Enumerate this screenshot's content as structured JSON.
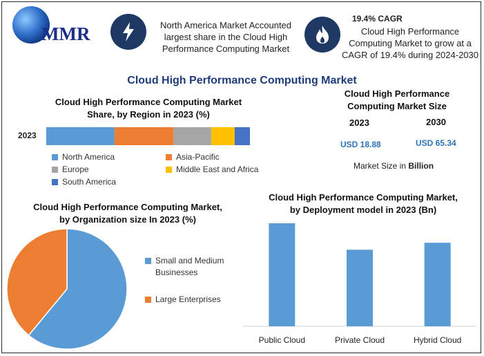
{
  "logo": {
    "text": "MMR"
  },
  "header": {
    "fact1": "North America Market Accounted largest share in the Cloud High Performance Computing Market",
    "fact2_title": "19.4% CAGR",
    "fact2": "Cloud High Performance Computing Market to grow at a CAGR of 19.4% during 2024-2030"
  },
  "main_title": "Cloud High Performance Computing Market",
  "market_size": {
    "title": "Cloud High Performance Computing Market Size",
    "year_1": "2023",
    "year_2": "2030",
    "value_1": "USD 18.88",
    "value_2": "USD 65.34",
    "note_prefix": "Market Size in ",
    "note_bold": "Billion"
  },
  "colors": {
    "blue": "#5b9bd5",
    "orange": "#ed7d31",
    "gray": "#a5a5a5",
    "yellow": "#ffc000",
    "navy": "#4472c4",
    "icon_bg": "#1e3a64",
    "title_blue": "#1f3c7a"
  },
  "chart_data": [
    {
      "type": "bar",
      "orientation": "horizontal-stacked",
      "title": "Cloud High Performance Computing Market Share, by Region in 2023 (%)",
      "categories": [
        "2023"
      ],
      "series": [
        {
          "name": "North America",
          "values": [
            33.5
          ],
          "color": "#5b9bd5"
        },
        {
          "name": "Asia-Pacific",
          "values": [
            29.0
          ],
          "color": "#ed7d31"
        },
        {
          "name": "Europe",
          "values": [
            18.5
          ],
          "color": "#a5a5a5"
        },
        {
          "name": "Middle East and Africa",
          "values": [
            11.5
          ],
          "color": "#ffc000"
        },
        {
          "name": "South America",
          "values": [
            7.5
          ],
          "color": "#4472c4"
        }
      ],
      "legend": "bottom"
    },
    {
      "type": "pie",
      "title": "Cloud High Performance Computing Market, by Organization size In 2023 (%)",
      "slices": [
        {
          "name": "Small and Medium Businesses",
          "value": 61,
          "color": "#5b9bd5"
        },
        {
          "name": "Large Enterprises",
          "value": 39,
          "color": "#ed7d31"
        }
      ],
      "legend": "right"
    },
    {
      "type": "bar",
      "title": "Cloud High Performance Computing Market, by Deployment model in 2023 (Bn)",
      "categories": [
        "Public Cloud",
        "Private Cloud",
        "Hybrid Cloud"
      ],
      "values": [
        7.4,
        5.5,
        6.0
      ],
      "ylim": [
        0,
        7.4
      ],
      "color": "#5b9bd5"
    }
  ]
}
